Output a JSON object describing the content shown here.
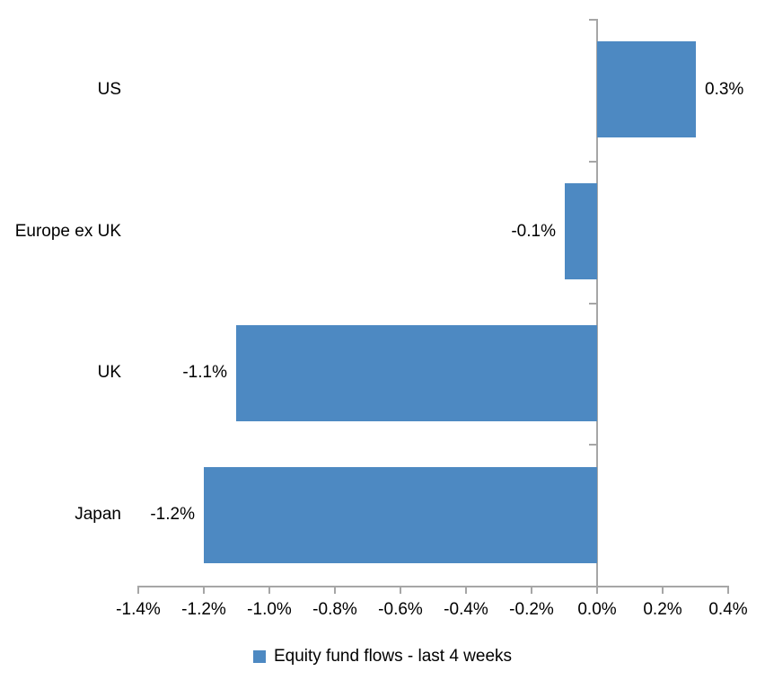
{
  "chart_data": {
    "type": "bar",
    "orientation": "horizontal",
    "title": "",
    "categories": [
      "US",
      "Europe ex UK",
      "UK",
      "Japan"
    ],
    "values": [
      0.3,
      -0.1,
      -1.1,
      -1.2
    ],
    "value_labels": [
      "0.3%",
      "-0.1%",
      "-1.1%",
      "-1.2%"
    ],
    "series": [
      {
        "name": "Equity fund flows - last 4 weeks",
        "values": [
          0.3,
          -0.1,
          -1.1,
          -1.2
        ]
      }
    ],
    "xlabel": "",
    "ylabel": "",
    "xlim": [
      -1.4,
      0.4
    ],
    "x_ticks": [
      -1.4,
      -1.2,
      -1.0,
      -0.8,
      -0.6,
      -0.4,
      -0.2,
      0.0,
      0.2,
      0.4
    ],
    "x_tick_labels": [
      "-1.4%",
      "-1.2%",
      "-1.0%",
      "-0.8%",
      "-0.6%",
      "-0.4%",
      "-0.2%",
      "0.0%",
      "0.2%",
      "0.4%"
    ],
    "grid": false,
    "legend_position": "bottom",
    "colors": {
      "bar": "#4d89c2",
      "axis": "#a6a6a6",
      "text": "#000000",
      "background": "#ffffff"
    }
  },
  "legend": {
    "label": "Equity fund flows - last 4 weeks"
  }
}
